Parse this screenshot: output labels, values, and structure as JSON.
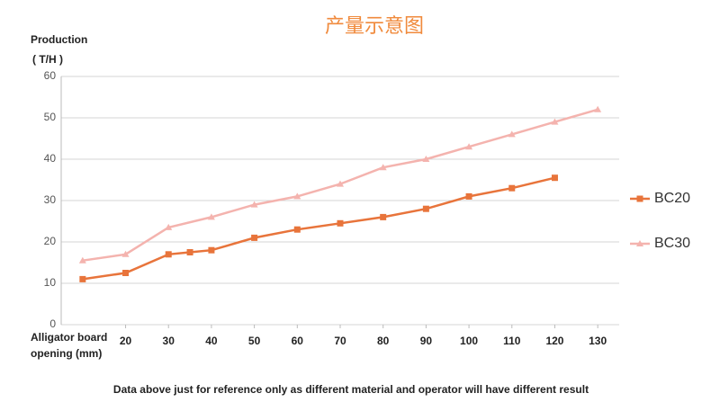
{
  "chart_data": {
    "type": "line",
    "title": "产量示意图",
    "ylabel": [
      "Production",
      "( T/H )"
    ],
    "xlabel": [
      "Alligator board",
      "opening (mm)"
    ],
    "note": "Data above just for reference only as different material and operator will have different result",
    "xlim": [
      5,
      135
    ],
    "xticks": [
      20,
      30,
      40,
      50,
      60,
      70,
      80,
      90,
      100,
      110,
      120,
      130
    ],
    "ylim": [
      0,
      60
    ],
    "yticks": [
      0,
      10,
      20,
      30,
      40,
      50,
      60
    ],
    "grid": true,
    "series": [
      {
        "name": "BC20",
        "color": "#e8743b",
        "marker": "square",
        "x": [
          10,
          20,
          30,
          35,
          40,
          50,
          60,
          70,
          80,
          90,
          100,
          110,
          120
        ],
        "values": [
          11,
          12.5,
          17,
          17.5,
          18,
          21,
          23,
          24.5,
          26,
          28,
          31,
          33,
          35.5
        ]
      },
      {
        "name": "BC30",
        "color": "#f4b3ae",
        "marker": "triangle",
        "x": [
          10,
          20,
          30,
          40,
          50,
          60,
          70,
          80,
          90,
          100,
          110,
          120,
          130
        ],
        "values": [
          15.5,
          17,
          23.5,
          26,
          29,
          31,
          34,
          38,
          40,
          43,
          46,
          49,
          52
        ]
      }
    ]
  }
}
